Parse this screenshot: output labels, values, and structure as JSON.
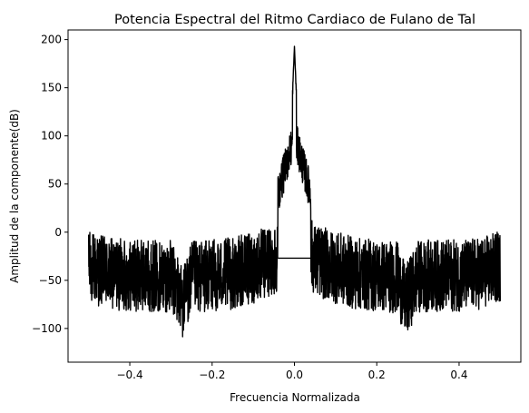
{
  "chart_data": {
    "type": "line",
    "title": "Potencia Espectral del Ritmo Cardiaco de Fulano de Tal",
    "xlabel": "Frecuencia Normalizada",
    "ylabel": "Amplitud de la componente(dB)",
    "xlim": [
      -0.55,
      0.55
    ],
    "ylim": [
      -135,
      210
    ],
    "xticks": [
      -0.4,
      -0.2,
      0.0,
      0.2,
      0.4
    ],
    "xtick_labels": [
      "−0.4",
      "−0.2",
      "0.0",
      "0.2",
      "0.4"
    ],
    "yticks": [
      -100,
      -50,
      0,
      50,
      100,
      150,
      200
    ],
    "ytick_labels": [
      "−100",
      "−50",
      "0",
      "50",
      "100",
      "150",
      "200"
    ],
    "grid": false,
    "line_color": "#000000",
    "series": [
      {
        "values": [
          {
            "x": -0.5,
            "y": -27
          },
          {
            "x": -0.45,
            "y": -45
          },
          {
            "x": -0.4,
            "y": -50
          },
          {
            "x": -0.35,
            "y": -50
          },
          {
            "x": -0.3,
            "y": -52
          },
          {
            "x": -0.27,
            "y": -120
          },
          {
            "x": -0.25,
            "y": -55
          },
          {
            "x": -0.2,
            "y": -50
          },
          {
            "x": -0.15,
            "y": -45
          },
          {
            "x": -0.1,
            "y": -30
          },
          {
            "x": -0.05,
            "y": -10
          },
          {
            "x": -0.02,
            "y": 40
          },
          {
            "x": 0.0,
            "y": 193
          },
          {
            "x": 0.02,
            "y": 40
          },
          {
            "x": 0.05,
            "y": -10
          },
          {
            "x": 0.1,
            "y": -30
          },
          {
            "x": 0.15,
            "y": -45
          },
          {
            "x": 0.2,
            "y": -50
          },
          {
            "x": 0.25,
            "y": -55
          },
          {
            "x": 0.27,
            "y": -118
          },
          {
            "x": 0.3,
            "y": -52
          },
          {
            "x": 0.35,
            "y": -50
          },
          {
            "x": 0.4,
            "y": -50
          },
          {
            "x": 0.45,
            "y": -45
          },
          {
            "x": 0.5,
            "y": -27
          }
        ]
      }
    ]
  }
}
